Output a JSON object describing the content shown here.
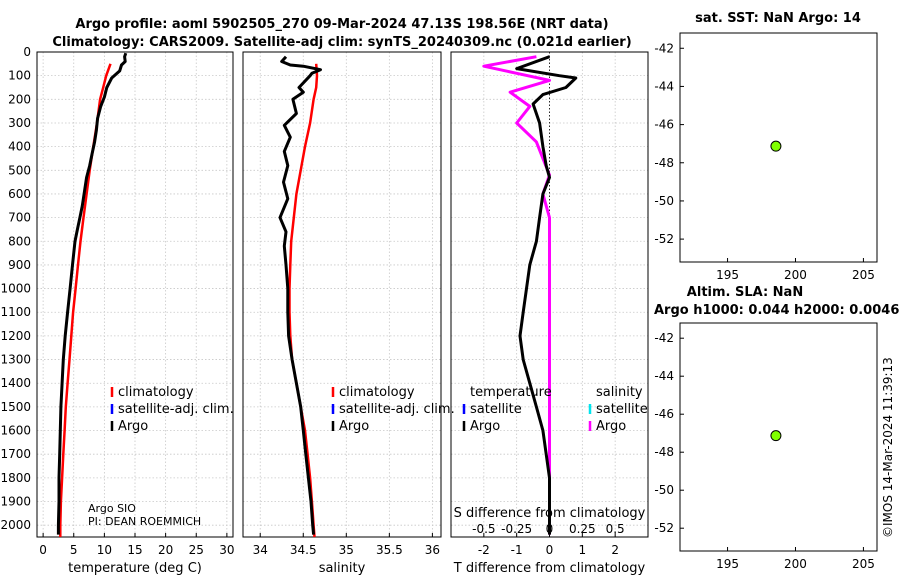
{
  "title_line1": "Argo profile: aoml 5902505_270 09-Mar-2024 47.13S 198.56E (NRT data)",
  "title_line2": "Climatology: CARS2009. Satellite-adj clim: synTS_20240309.nc (0.021d earlier)",
  "watermark": "©IMOS 14-Mar-2024 11:39:13",
  "colors": {
    "climatology": "#ff0000",
    "satellite": "#0000ff",
    "argo": "#000000",
    "sal_satellite": "#00e5ee",
    "sal_argo": "#ff00ff",
    "marker": "#7fff00"
  },
  "chart_data": [
    {
      "id": "temperature",
      "type": "line",
      "xlabel": "temperature (deg C)",
      "ylabel": "",
      "xlim": [
        -1,
        31
      ],
      "ylim": [
        2050,
        0
      ],
      "xticks": [
        0,
        5,
        10,
        15,
        20,
        25,
        30
      ],
      "yticks": [
        0,
        100,
        200,
        300,
        400,
        500,
        600,
        700,
        800,
        900,
        1000,
        1100,
        1200,
        1300,
        1400,
        1500,
        1600,
        1700,
        1800,
        1900,
        2000
      ],
      "legend": [
        "climatology",
        "satellite-adj. clim.",
        "Argo"
      ],
      "notes": [
        "Argo SIO",
        "PI: DEAN ROEMMICH"
      ],
      "series": [
        {
          "name": "climatology",
          "color": "#ff0000",
          "points": [
            [
              11.0,
              50
            ],
            [
              10.3,
              100
            ],
            [
              9.8,
              150
            ],
            [
              9.3,
              200
            ],
            [
              8.8,
              300
            ],
            [
              8.2,
              400
            ],
            [
              7.6,
              500
            ],
            [
              7.1,
              600
            ],
            [
              6.6,
              700
            ],
            [
              6.1,
              800
            ],
            [
              5.7,
              900
            ],
            [
              5.3,
              1000
            ],
            [
              4.9,
              1100
            ],
            [
              4.6,
              1200
            ],
            [
              4.3,
              1300
            ],
            [
              4.0,
              1400
            ],
            [
              3.7,
              1500
            ],
            [
              3.5,
              1600
            ],
            [
              3.3,
              1700
            ],
            [
              3.1,
              1800
            ],
            [
              2.9,
              1900
            ],
            [
              2.8,
              2000
            ],
            [
              2.8,
              2050
            ]
          ]
        },
        {
          "name": "Argo",
          "color": "#000000",
          "points": [
            [
              13.5,
              5
            ],
            [
              13.3,
              20
            ],
            [
              13.4,
              40
            ],
            [
              12.8,
              55
            ],
            [
              12.5,
              80
            ],
            [
              11.2,
              110
            ],
            [
              10.4,
              150
            ],
            [
              10.0,
              190
            ],
            [
              9.4,
              230
            ],
            [
              8.9,
              280
            ],
            [
              8.7,
              330
            ],
            [
              8.4,
              380
            ],
            [
              8.0,
              430
            ],
            [
              7.6,
              480
            ],
            [
              7.1,
              530
            ],
            [
              6.8,
              580
            ],
            [
              6.4,
              650
            ],
            [
              6.0,
              700
            ],
            [
              5.6,
              750
            ],
            [
              5.2,
              800
            ],
            [
              4.8,
              900
            ],
            [
              4.4,
              1000
            ],
            [
              4.0,
              1100
            ],
            [
              3.6,
              1200
            ],
            [
              3.3,
              1300
            ],
            [
              3.1,
              1400
            ],
            [
              2.9,
              1500
            ],
            [
              2.8,
              1600
            ],
            [
              2.7,
              1700
            ],
            [
              2.6,
              1800
            ],
            [
              2.6,
              1900
            ],
            [
              2.5,
              2000
            ],
            [
              2.5,
              2040
            ]
          ]
        }
      ]
    },
    {
      "id": "salinity",
      "type": "line",
      "xlabel": "salinity",
      "xlim": [
        33.8,
        36.1
      ],
      "ylim": [
        2050,
        0
      ],
      "xticks": [
        34,
        34.5,
        35,
        35.5,
        36
      ],
      "xticklabels": [
        "34",
        "34.5",
        "35",
        "35.5",
        "36"
      ],
      "legend": [
        "climatology",
        "satellite-adj. clim.",
        "Argo"
      ],
      "series": [
        {
          "name": "climatology",
          "color": "#ff0000",
          "points": [
            [
              34.65,
              50
            ],
            [
              34.66,
              100
            ],
            [
              34.65,
              150
            ],
            [
              34.62,
              200
            ],
            [
              34.58,
              300
            ],
            [
              34.52,
              400
            ],
            [
              34.47,
              500
            ],
            [
              34.42,
              600
            ],
            [
              34.39,
              700
            ],
            [
              34.36,
              800
            ],
            [
              34.35,
              900
            ],
            [
              34.34,
              1000
            ],
            [
              34.34,
              1100
            ],
            [
              34.35,
              1200
            ],
            [
              34.37,
              1300
            ],
            [
              34.42,
              1400
            ],
            [
              34.47,
              1500
            ],
            [
              34.52,
              1600
            ],
            [
              34.55,
              1700
            ],
            [
              34.58,
              1800
            ],
            [
              34.6,
              1900
            ],
            [
              34.62,
              2000
            ],
            [
              34.63,
              2050
            ]
          ]
        },
        {
          "name": "Argo",
          "color": "#000000",
          "points": [
            [
              34.3,
              20
            ],
            [
              34.25,
              40
            ],
            [
              34.35,
              55
            ],
            [
              34.5,
              60
            ],
            [
              34.7,
              75
            ],
            [
              34.6,
              90
            ],
            [
              34.58,
              100
            ],
            [
              34.45,
              150
            ],
            [
              34.5,
              170
            ],
            [
              34.38,
              200
            ],
            [
              34.42,
              260
            ],
            [
              34.28,
              310
            ],
            [
              34.35,
              360
            ],
            [
              34.28,
              420
            ],
            [
              34.32,
              480
            ],
            [
              34.27,
              550
            ],
            [
              34.32,
              620
            ],
            [
              34.23,
              700
            ],
            [
              34.3,
              760
            ],
            [
              34.28,
              820
            ],
            [
              34.3,
              900
            ],
            [
              34.32,
              1000
            ],
            [
              34.32,
              1100
            ],
            [
              34.33,
              1200
            ],
            [
              34.37,
              1300
            ],
            [
              34.42,
              1400
            ],
            [
              34.47,
              1500
            ],
            [
              34.5,
              1600
            ],
            [
              34.53,
              1700
            ],
            [
              34.56,
              1800
            ],
            [
              34.59,
              1900
            ],
            [
              34.61,
              2000
            ],
            [
              34.62,
              2040
            ]
          ]
        }
      ]
    },
    {
      "id": "difference",
      "type": "line",
      "xlabel": "T difference from climatology",
      "xlabel2": "S difference from climatology",
      "xlim": [
        -3,
        3
      ],
      "ylim": [
        2050,
        0
      ],
      "xticks": [
        -2,
        -1,
        0,
        1,
        2
      ],
      "xticks2": [
        -0.5,
        -0.25,
        0,
        0.25,
        0.5
      ],
      "xticklabels2": [
        "-0.5",
        "-0.25",
        "0",
        "0.25",
        "0.5"
      ],
      "legend_temperature": [
        "temperature",
        "satellite",
        "Argo"
      ],
      "legend_salinity": [
        "salinity",
        "satellite",
        "Argo"
      ],
      "series": [
        {
          "name": "T difference Argo",
          "color": "#000000",
          "points": [
            [
              0.0,
              20
            ],
            [
              -1.0,
              70
            ],
            [
              0.3,
              100
            ],
            [
              0.8,
              110
            ],
            [
              0.5,
              150
            ],
            [
              -0.2,
              180
            ],
            [
              -0.5,
              220
            ],
            [
              -0.3,
              300
            ],
            [
              -0.2,
              400
            ],
            [
              -0.1,
              480
            ],
            [
              0.0,
              530
            ],
            [
              -0.2,
              600
            ],
            [
              -0.3,
              700
            ],
            [
              -0.4,
              800
            ],
            [
              -0.6,
              900
            ],
            [
              -0.7,
              1000
            ],
            [
              -0.8,
              1100
            ],
            [
              -0.9,
              1200
            ],
            [
              -0.8,
              1300
            ],
            [
              -0.6,
              1400
            ],
            [
              -0.4,
              1500
            ],
            [
              -0.2,
              1600
            ],
            [
              -0.1,
              1700
            ],
            [
              0.0,
              1800
            ],
            [
              0.0,
              1900
            ],
            [
              0.0,
              2000
            ],
            [
              0.0,
              2040
            ]
          ]
        },
        {
          "name": "S difference Argo",
          "color": "#ff00ff",
          "points": [
            [
              -0.1,
              20
            ],
            [
              -0.5,
              60
            ],
            [
              -0.25,
              90
            ],
            [
              0.0,
              120
            ],
            [
              -0.3,
              170
            ],
            [
              -0.15,
              230
            ],
            [
              -0.25,
              300
            ],
            [
              -0.1,
              380
            ],
            [
              -0.05,
              450
            ],
            [
              0.0,
              520
            ],
            [
              -0.05,
              600
            ],
            [
              0.0,
              700
            ],
            [
              0.0,
              800
            ],
            [
              0.0,
              900
            ],
            [
              0.0,
              1000
            ],
            [
              0.0,
              1100
            ],
            [
              0.0,
              1200
            ],
            [
              0.0,
              1300
            ],
            [
              0.0,
              1400
            ],
            [
              0.0,
              1500
            ],
            [
              0.0,
              1600
            ],
            [
              0.0,
              1700
            ],
            [
              0.0,
              1800
            ],
            [
              0.0,
              1900
            ],
            [
              0.0,
              2000
            ],
            [
              0.0,
              2040
            ]
          ]
        }
      ]
    },
    {
      "id": "sst_map",
      "type": "scatter",
      "title": "sat. SST: NaN Argo: 14",
      "xlim": [
        191.5,
        206
      ],
      "ylim": [
        -53.2,
        -41.2
      ],
      "xticks": [
        195,
        200,
        205
      ],
      "yticks": [
        -42,
        -44,
        -46,
        -48,
        -50,
        -52
      ],
      "points": [
        {
          "x": 198.56,
          "y": -47.13
        }
      ]
    },
    {
      "id": "sla_map",
      "type": "scatter",
      "title": "Altim. SLA: NaN",
      "subtitle": "Argo h1000: 0.044 h2000: 0.0046",
      "xlim": [
        191.5,
        206
      ],
      "ylim": [
        -53.2,
        -41.2
      ],
      "xticks": [
        195,
        200,
        205
      ],
      "yticks": [
        -42,
        -44,
        -46,
        -48,
        -50,
        -52
      ],
      "points": [
        {
          "x": 198.56,
          "y": -47.13
        }
      ]
    }
  ]
}
